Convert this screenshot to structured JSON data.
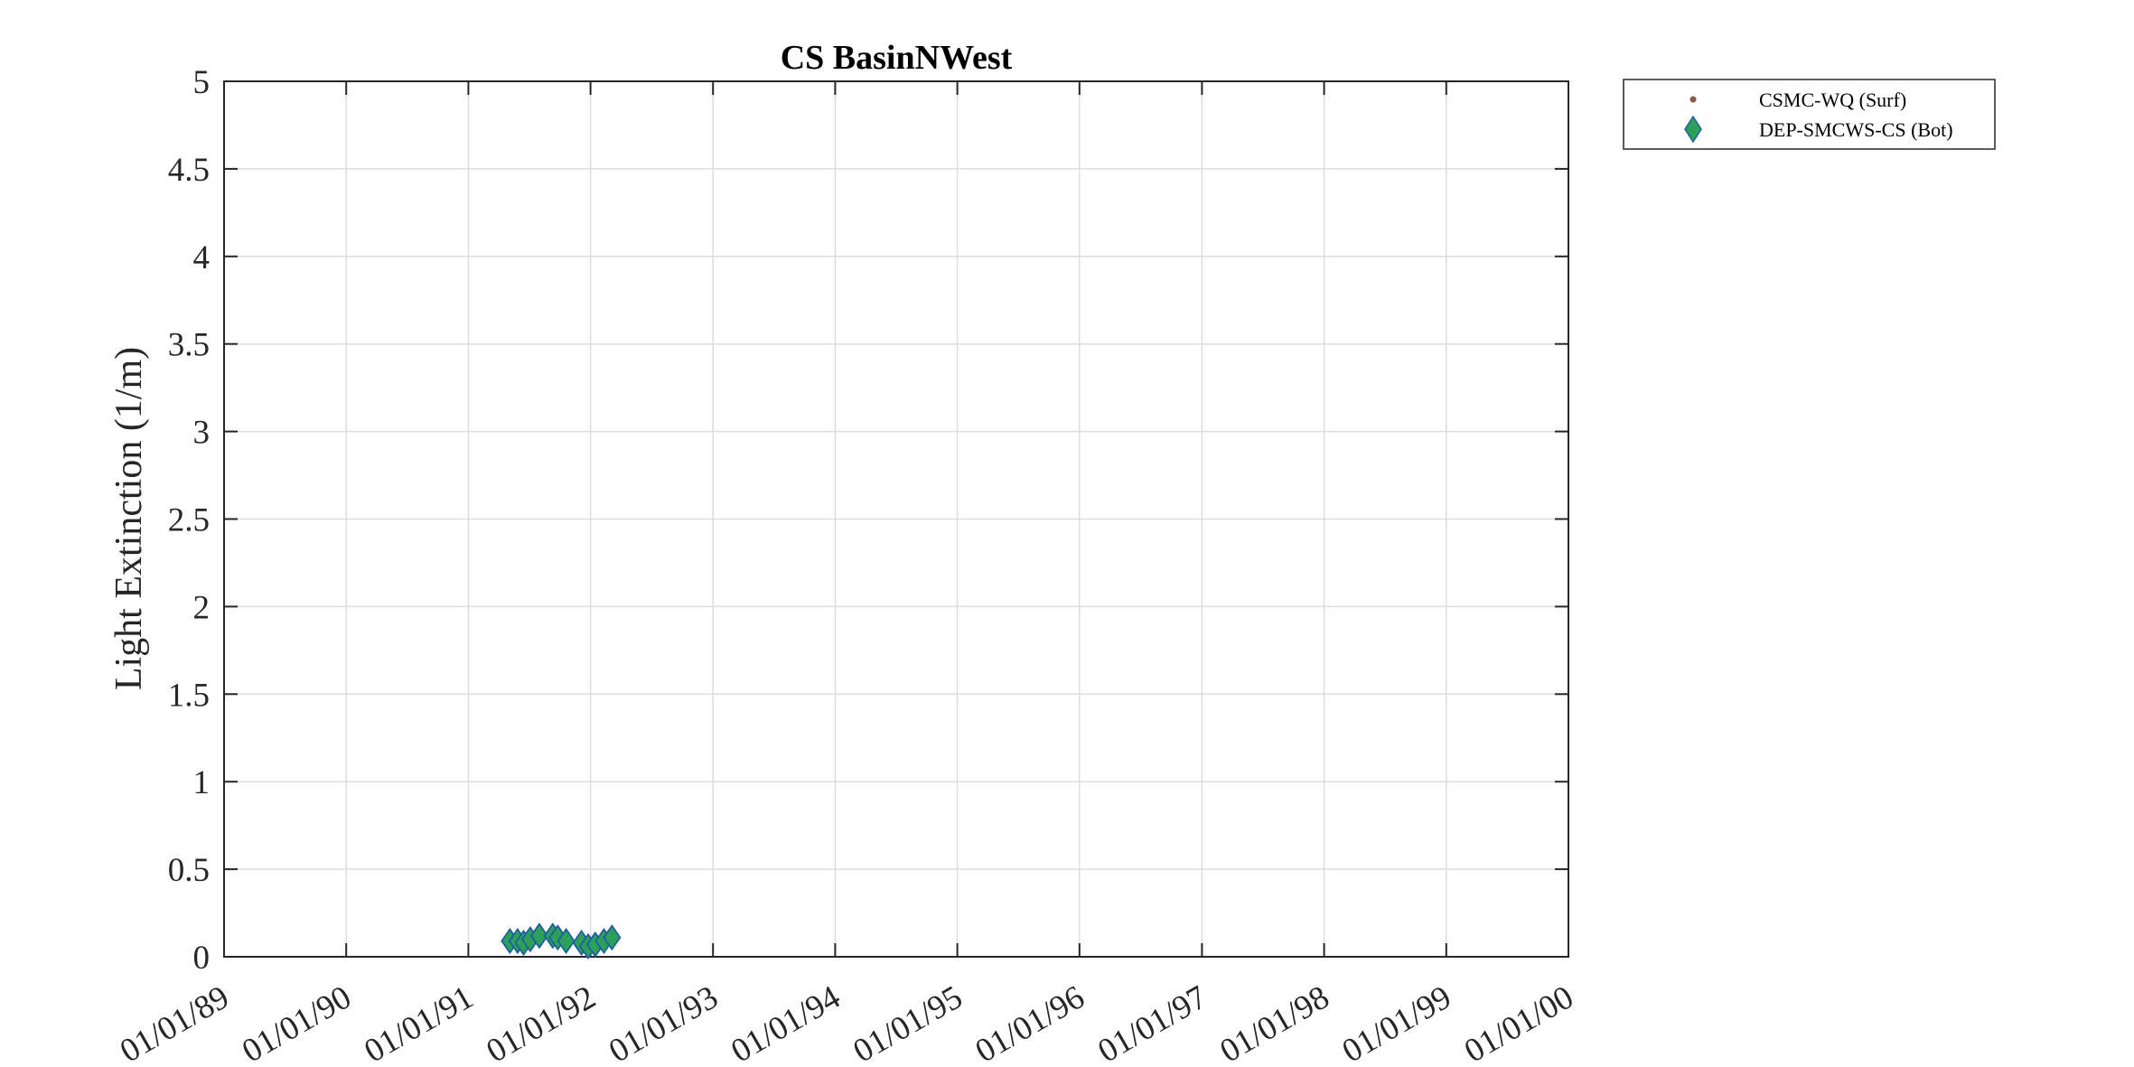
{
  "chart_data": {
    "type": "scatter",
    "title": "CS BasinNWest",
    "xlabel": "",
    "ylabel": "Light Extinction (1/m)",
    "x_axis_type": "date",
    "xlim": [
      "1989-01-01",
      "2000-01-01"
    ],
    "ylim": [
      0,
      5
    ],
    "x_ticks": [
      "1989-01-01",
      "1990-01-01",
      "1991-01-01",
      "1992-01-01",
      "1993-01-01",
      "1994-01-01",
      "1995-01-01",
      "1996-01-01",
      "1997-01-01",
      "1998-01-01",
      "1999-01-01",
      "2000-01-01"
    ],
    "x_tick_labels": [
      "01/01/89",
      "01/01/90",
      "01/01/91",
      "01/01/92",
      "01/01/93",
      "01/01/94",
      "01/01/95",
      "01/01/96",
      "01/01/97",
      "01/01/98",
      "01/01/99",
      "01/01/00"
    ],
    "y_ticks": [
      0,
      0.5,
      1,
      1.5,
      2,
      2.5,
      3,
      3.5,
      4,
      4.5,
      5
    ],
    "y_tick_labels": [
      "0",
      "0.5",
      "1",
      "1.5",
      "2",
      "2.5",
      "3",
      "3.5",
      "4",
      "4.5",
      "5"
    ],
    "grid": true,
    "legend_placement": "outside-top-right",
    "series": [
      {
        "name": "CSMC-WQ (Surf)",
        "marker": "dot",
        "color": "#8c5a44",
        "points": []
      },
      {
        "name": "DEP-SMCWS-CS (Bot)",
        "marker": "diamond",
        "color": "#2ca05a",
        "edge_color": "#1f5fa0",
        "points": [
          {
            "x": "1991-05-05",
            "y": 0.09
          },
          {
            "x": "1991-05-28",
            "y": 0.09
          },
          {
            "x": "1991-06-15",
            "y": 0.08
          },
          {
            "x": "1991-07-05",
            "y": 0.1
          },
          {
            "x": "1991-08-01",
            "y": 0.12
          },
          {
            "x": "1991-09-10",
            "y": 0.12
          },
          {
            "x": "1991-09-25",
            "y": 0.11
          },
          {
            "x": "1991-10-20",
            "y": 0.09
          },
          {
            "x": "1991-12-05",
            "y": 0.08
          },
          {
            "x": "1991-12-25",
            "y": 0.06
          },
          {
            "x": "1992-01-15",
            "y": 0.07
          },
          {
            "x": "1992-02-10",
            "y": 0.09
          },
          {
            "x": "1992-03-05",
            "y": 0.11
          }
        ]
      }
    ]
  }
}
